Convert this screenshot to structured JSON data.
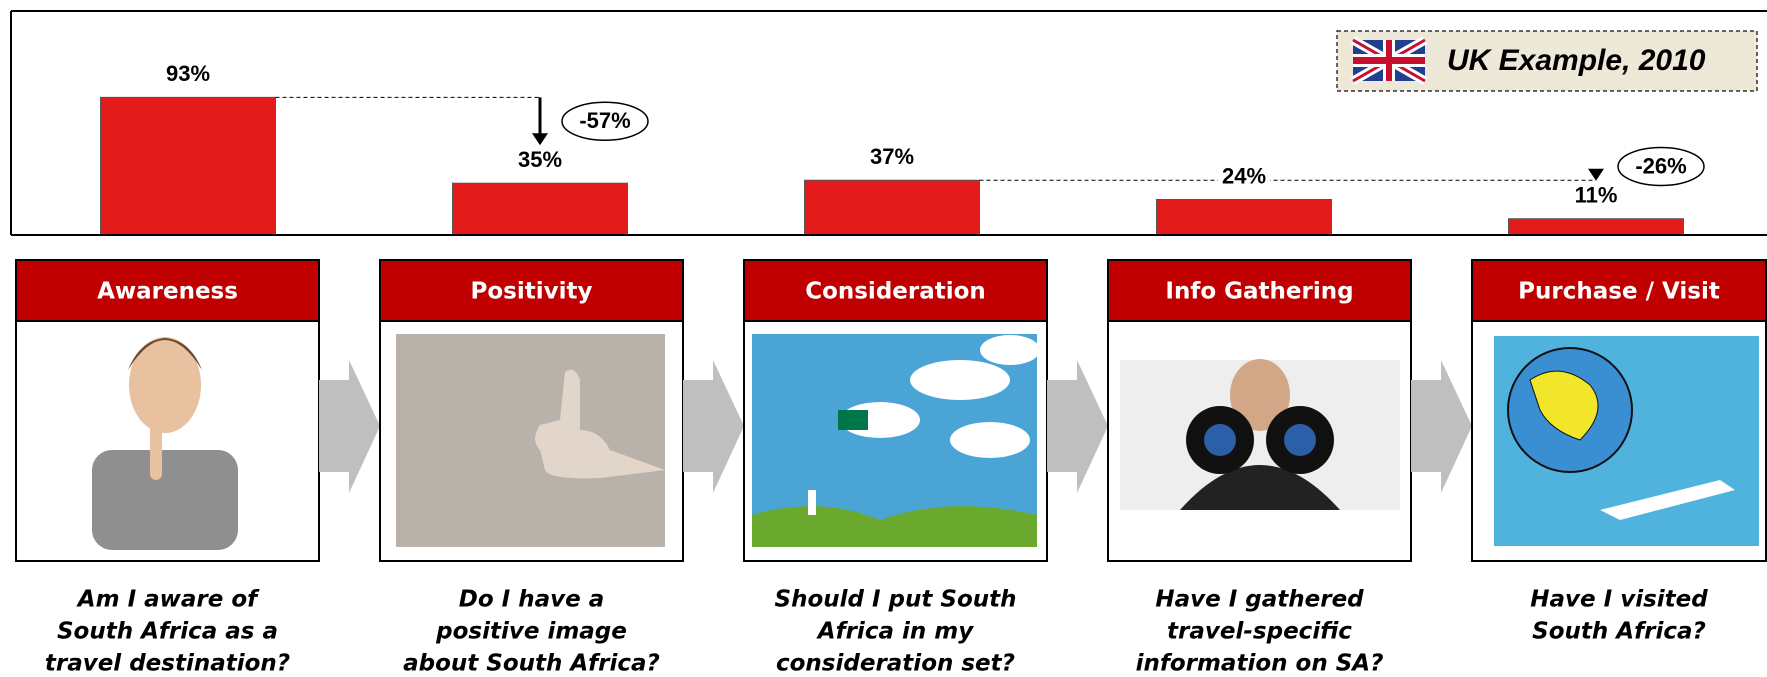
{
  "chart_data": {
    "type": "bar",
    "subtitle": "UK Example, 2010",
    "categories": [
      "Awareness",
      "Positivity",
      "Consideration",
      "Info Gathering",
      "Purchase / Visit"
    ],
    "values": [
      93,
      35,
      37,
      24,
      11
    ],
    "value_labels": [
      "93%",
      "35%",
      "37%",
      "24%",
      "11%"
    ],
    "color": "#e31b1b",
    "ylim": [
      0,
      100
    ],
    "annotations": [
      {
        "label": "-57%",
        "from": "Awareness",
        "to": "Positivity"
      },
      {
        "label": "-26%",
        "from": "Consideration",
        "to": "Purchase / Visit"
      }
    ]
  },
  "stages": [
    {
      "question": [
        "Am I aware of",
        "South Africa as a",
        "travel destination?"
      ]
    },
    {
      "question": [
        "Do I have a",
        "positive image",
        "about South Africa?"
      ]
    },
    {
      "question": [
        "Should I put South",
        "Africa in my",
        "consideration set?"
      ]
    },
    {
      "question": [
        "Have I gathered",
        "travel-specific",
        "information on SA?"
      ]
    },
    {
      "question": [
        "Have I visited",
        "South Africa?"
      ]
    }
  ]
}
